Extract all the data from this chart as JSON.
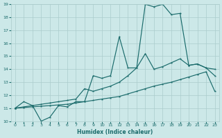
{
  "xlabel": "Humidex (Indice chaleur)",
  "background_color": "#cce8e8",
  "grid_color": "#aacccc",
  "line_color": "#1a6b6b",
  "xlim_min": -0.5,
  "xlim_max": 23.5,
  "ylim_min": 10,
  "ylim_max": 19,
  "xticks": [
    0,
    1,
    2,
    3,
    4,
    5,
    6,
    7,
    8,
    9,
    10,
    11,
    12,
    13,
    14,
    15,
    16,
    17,
    18,
    19,
    20,
    21,
    22,
    23
  ],
  "yticks": [
    10,
    11,
    12,
    13,
    14,
    15,
    16,
    17,
    18,
    19
  ],
  "s1x": [
    0,
    1,
    2,
    3,
    4,
    5,
    6,
    7,
    8,
    9,
    10,
    11,
    12,
    13,
    14,
    15,
    16,
    17,
    18,
    19,
    20,
    21,
    22,
    23
  ],
  "s1y": [
    11.0,
    11.5,
    11.2,
    10.0,
    10.3,
    11.2,
    11.1,
    11.5,
    11.5,
    13.5,
    13.3,
    13.5,
    16.5,
    14.1,
    14.1,
    19.0,
    18.8,
    19.0,
    18.2,
    18.3,
    14.3,
    14.4,
    14.1,
    13.5
  ],
  "s2x": [
    0,
    1,
    2,
    3,
    4,
    5,
    6,
    7,
    8,
    9,
    10,
    11,
    12,
    13,
    14,
    15,
    16,
    17,
    18,
    19,
    20,
    21,
    22,
    23
  ],
  "s2y": [
    11.0,
    11.1,
    11.2,
    11.3,
    11.4,
    11.5,
    11.6,
    11.7,
    12.5,
    12.3,
    12.5,
    12.7,
    13.0,
    13.5,
    14.1,
    15.2,
    14.0,
    14.2,
    14.5,
    14.8,
    14.3,
    14.4,
    14.1,
    14.0
  ],
  "s3x": [
    0,
    1,
    2,
    3,
    4,
    5,
    6,
    7,
    8,
    9,
    10,
    11,
    12,
    13,
    14,
    15,
    16,
    17,
    18,
    19,
    20,
    21,
    22,
    23
  ],
  "s3y": [
    11.0,
    11.05,
    11.1,
    11.15,
    11.2,
    11.25,
    11.3,
    11.4,
    11.5,
    11.6,
    11.7,
    11.8,
    11.9,
    12.1,
    12.3,
    12.5,
    12.7,
    12.85,
    13.0,
    13.2,
    13.4,
    13.6,
    13.8,
    12.3
  ]
}
